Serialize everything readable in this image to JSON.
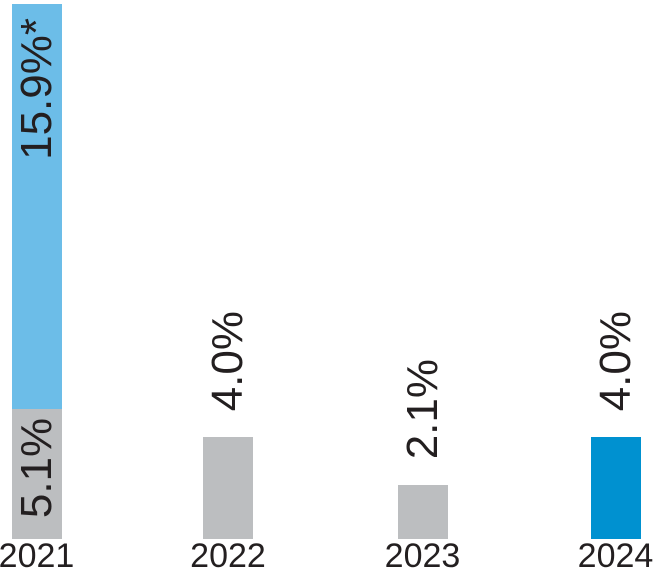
{
  "chart_data": {
    "type": "bar",
    "title": "",
    "xlabel": "",
    "ylabel": "",
    "categories": [
      "2021",
      "2022",
      "2023",
      "2024"
    ],
    "ylim": [
      0,
      21
    ],
    "grid": false,
    "legend": false,
    "value_unit": "%",
    "bars": [
      {
        "category": "2021",
        "segments": [
          {
            "value": 5.1,
            "label": "5.1%",
            "color": "#bcbec0",
            "label_pos": "inside-center"
          },
          {
            "value": 15.9,
            "label": "15.9%*",
            "color": "#6cbde8",
            "label_pos": "inside-top"
          }
        ]
      },
      {
        "category": "2022",
        "segments": [
          {
            "value": 4.0,
            "label": "4.0%",
            "color": "#bcbec0",
            "label_pos": "above"
          }
        ]
      },
      {
        "category": "2023",
        "segments": [
          {
            "value": 2.1,
            "label": "2.1%",
            "color": "#bcbec0",
            "label_pos": "above"
          }
        ]
      },
      {
        "category": "2024",
        "segments": [
          {
            "value": 4.0,
            "label": "4.0%",
            "color": "#0091d0",
            "label_pos": "above"
          }
        ]
      }
    ],
    "annotations": {
      "footnote_marker": "*"
    },
    "colors": {
      "gray": "#bcbec0",
      "light_blue": "#6cbde8",
      "dark_blue": "#0091d0",
      "text": "#231f20"
    }
  }
}
